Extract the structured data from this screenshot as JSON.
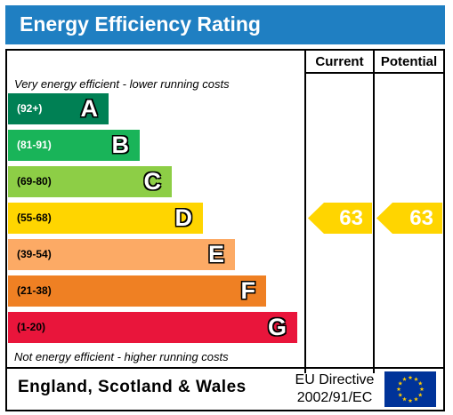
{
  "title": "Energy Efficiency Rating",
  "columns": {
    "current": "Current",
    "potential": "Potential"
  },
  "notes": {
    "top": "Very energy efficient - lower running costs",
    "bottom": "Not energy efficient - higher running costs"
  },
  "footer": {
    "country": "England, Scotland & Wales",
    "directive_line1": "EU Directive",
    "directive_line2": "2002/91/EC"
  },
  "chart_data": {
    "type": "bar",
    "categories": [
      "A",
      "B",
      "C",
      "D",
      "E",
      "F",
      "G"
    ],
    "ranges": [
      "(92+)",
      "(81-91)",
      "(69-80)",
      "(55-68)",
      "(39-54)",
      "(21-38)",
      "(1-20)"
    ],
    "colors": [
      "#008054",
      "#19b459",
      "#8dce46",
      "#ffd500",
      "#fcaa65",
      "#ef8023",
      "#e9153b"
    ],
    "current": 63,
    "potential": 63,
    "current_band": "D",
    "potential_band": "D",
    "indicator_color": "#ffd500",
    "title": "Energy Efficiency Rating"
  }
}
